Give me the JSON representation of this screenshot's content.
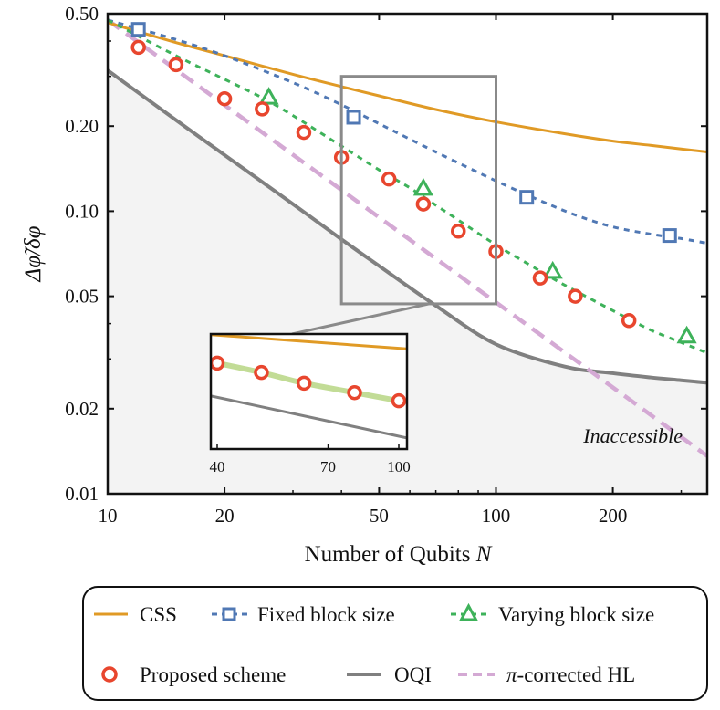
{
  "chart_data": {
    "type": "line",
    "x_scale": "log",
    "y_scale": "log",
    "xlim": [
      10,
      350
    ],
    "ylim": [
      0.01,
      0.5
    ],
    "x_ticks": [
      {
        "value": 10,
        "label": "10"
      },
      {
        "value": 20,
        "label": "20"
      },
      {
        "value": 50,
        "label": "50"
      },
      {
        "value": 100,
        "label": "100"
      },
      {
        "value": 200,
        "label": "200"
      }
    ],
    "y_ticks": [
      {
        "value": 0.5,
        "label": "0.50"
      },
      {
        "value": 0.2,
        "label": "0.20"
      },
      {
        "value": 0.1,
        "label": "0.10"
      },
      {
        "value": 0.05,
        "label": "0.05"
      },
      {
        "value": 0.02,
        "label": "0.02"
      },
      {
        "value": 0.01,
        "label": "0.01"
      }
    ],
    "xlabel_main": "Number of Qubits ",
    "xlabel_var": "N",
    "ylabel": "Δφ̃/δφ",
    "annotation": "Inaccessible",
    "series": [
      {
        "key": "css",
        "name": "CSS",
        "color": "#e09a25",
        "style": "solid",
        "marker": "none",
        "x": [
          10,
          15,
          20,
          30,
          40,
          50,
          70,
          100,
          150,
          200,
          250,
          300,
          350
        ],
        "y": [
          0.465,
          0.395,
          0.355,
          0.305,
          0.276,
          0.256,
          0.229,
          0.207,
          0.188,
          0.177,
          0.171,
          0.166,
          0.162
        ]
      },
      {
        "key": "fixed_curve",
        "name": "Fixed block size (curve)",
        "color": "#5078b4",
        "style": "dashed",
        "marker": "none",
        "x": [
          10,
          15,
          20,
          30,
          40,
          50,
          70,
          100,
          130,
          160,
          200,
          250,
          300,
          350
        ],
        "y": [
          0.475,
          0.405,
          0.355,
          0.285,
          0.238,
          0.204,
          0.162,
          0.128,
          0.109,
          0.097,
          0.088,
          0.083,
          0.08,
          0.077
        ]
      },
      {
        "key": "varying_curve",
        "name": "Varying block size (curve)",
        "color": "#3eb25a",
        "style": "dashed",
        "marker": "none",
        "x": [
          10,
          15,
          20,
          25,
          30,
          40,
          50,
          60,
          70,
          80,
          100,
          120,
          140,
          160,
          200,
          250,
          300,
          350
        ],
        "y": [
          0.475,
          0.355,
          0.293,
          0.252,
          0.218,
          0.17,
          0.14,
          0.121,
          0.105,
          0.093,
          0.076,
          0.0655,
          0.0578,
          0.0523,
          0.0445,
          0.038,
          0.0343,
          0.0315
        ]
      },
      {
        "key": "oqi",
        "name": "OQI",
        "color": "#808080",
        "style": "solid",
        "marker": "none",
        "x": [
          10,
          15,
          20,
          30,
          40,
          50,
          70,
          100,
          150,
          200,
          250,
          300,
          350
        ],
        "y": [
          0.315,
          0.21,
          0.158,
          0.106,
          0.0795,
          0.064,
          0.0463,
          0.0338,
          0.0282,
          0.0267,
          0.0258,
          0.0252,
          0.0247
        ]
      },
      {
        "key": "hl",
        "name": "π-corrected HL",
        "color": "#d4a9d4",
        "style": "dashed",
        "marker": "none",
        "x": [
          10,
          350
        ],
        "y": [
          0.475,
          0.0136
        ]
      },
      {
        "key": "fixed_markers",
        "name": "Fixed block size",
        "color": "#5078b4",
        "marker": "square",
        "x": [
          12,
          43,
          120,
          280
        ],
        "y": [
          0.44,
          0.215,
          0.112,
          0.082
        ]
      },
      {
        "key": "varying_markers",
        "name": "Varying block size",
        "color": "#3eb25a",
        "marker": "triangle",
        "x": [
          26,
          65,
          140,
          310
        ],
        "y": [
          0.252,
          0.12,
          0.061,
          0.036
        ]
      },
      {
        "key": "proposed",
        "name": "Proposed scheme",
        "color": "#e8462e",
        "marker": "circle",
        "x": [
          12,
          15,
          20,
          25,
          32,
          40,
          53,
          65,
          80,
          100,
          130,
          160,
          220
        ],
        "y": [
          0.38,
          0.33,
          0.25,
          0.23,
          0.19,
          0.155,
          0.13,
          0.106,
          0.085,
          0.072,
          0.058,
          0.05,
          0.041
        ]
      }
    ],
    "inset": {
      "xlim": [
        40,
        100
      ],
      "x_ticks": [
        {
          "value": 40,
          "label": "40"
        },
        {
          "value": 70,
          "label": "70"
        },
        {
          "value": 100,
          "label": "100"
        }
      ],
      "zoom_region": {
        "x": [
          40,
          100
        ],
        "y": [
          0.047,
          0.3
        ]
      },
      "css_y": [
        0.276,
        0.207
      ],
      "oqi_y": [
        0.0795,
        0.0338
      ],
      "proposed_x": [
        40,
        50,
        62,
        80,
        100
      ],
      "proposed_y": [
        0.155,
        0.128,
        0.103,
        0.085,
        0.072
      ]
    }
  },
  "legend": {
    "css": "CSS",
    "fixed": "Fixed block size",
    "varying": "Varying block size",
    "proposed": "Proposed scheme",
    "oqi": "OQI",
    "hl_pi": "π",
    "hl_rest": "-corrected HL"
  }
}
